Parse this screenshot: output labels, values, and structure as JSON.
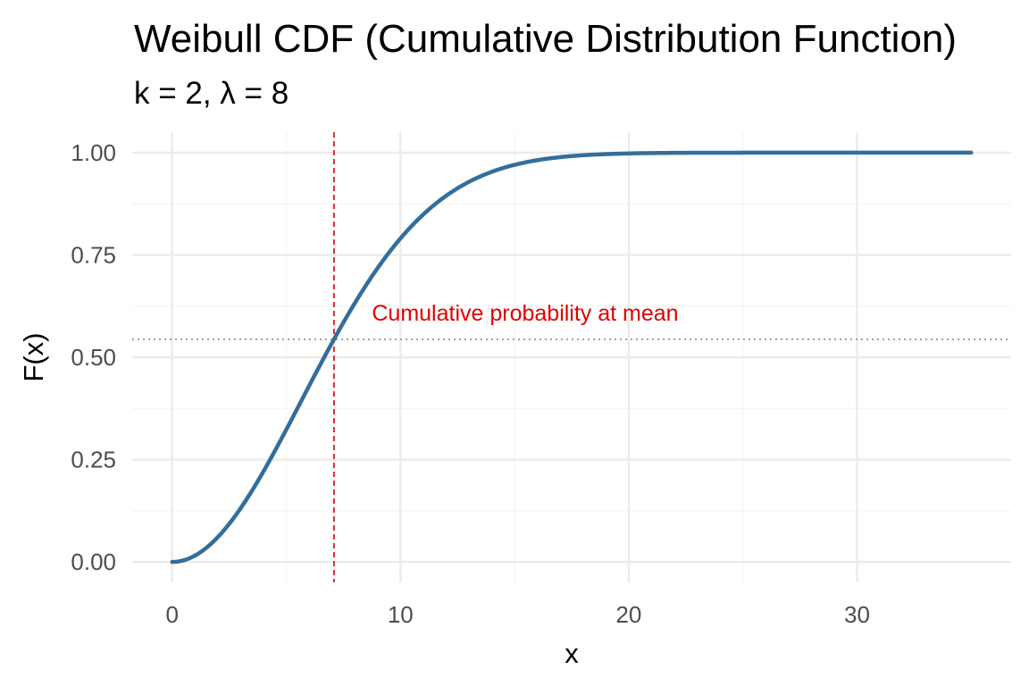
{
  "chart_data": {
    "type": "line",
    "title": "Weibull CDF (Cumulative Distribution Function)",
    "subtitle": "k = 2,  λ = 8",
    "xlabel": "x",
    "ylabel": "F(x)",
    "xlim": [
      -1.75,
      36.75
    ],
    "ylim": [
      -0.05,
      1.05
    ],
    "x_ticks": [
      0,
      10,
      20,
      30
    ],
    "x_tick_labels": [
      "0",
      "10",
      "20",
      "30"
    ],
    "y_ticks": [
      0,
      0.25,
      0.5,
      0.75,
      1.0
    ],
    "y_tick_labels": [
      "0.00",
      "0.25",
      "0.50",
      "0.75",
      "1.00"
    ],
    "grid": true,
    "legend": "none",
    "distribution": {
      "name": "Weibull",
      "k": 2,
      "lambda": 8
    },
    "series": [
      {
        "name": "F(x)",
        "color": "#336e9b",
        "x": [
          0,
          1,
          2,
          3,
          4,
          5,
          6,
          7,
          8,
          9,
          10,
          11,
          12,
          13,
          14,
          15,
          16,
          17,
          18,
          19,
          20,
          22,
          25,
          30,
          35
        ],
        "y": [
          0.0,
          0.015,
          0.061,
          0.132,
          0.221,
          0.323,
          0.43,
          0.535,
          0.632,
          0.718,
          0.79,
          0.849,
          0.895,
          0.929,
          0.953,
          0.97,
          0.982,
          0.989,
          0.994,
          0.996,
          0.998,
          0.999,
          1.0,
          1.0,
          1.0
        ]
      }
    ],
    "reference_lines": [
      {
        "orientation": "vertical",
        "x": 7.09,
        "style": "dashed",
        "color": "#e31a1c"
      },
      {
        "orientation": "horizontal",
        "y": 0.544,
        "style": "dotted",
        "color": "#808080"
      }
    ],
    "annotations": [
      {
        "text": "Cumulative probability at mean",
        "x": 8.75,
        "y": 0.59,
        "color": "#e00000"
      }
    ]
  }
}
